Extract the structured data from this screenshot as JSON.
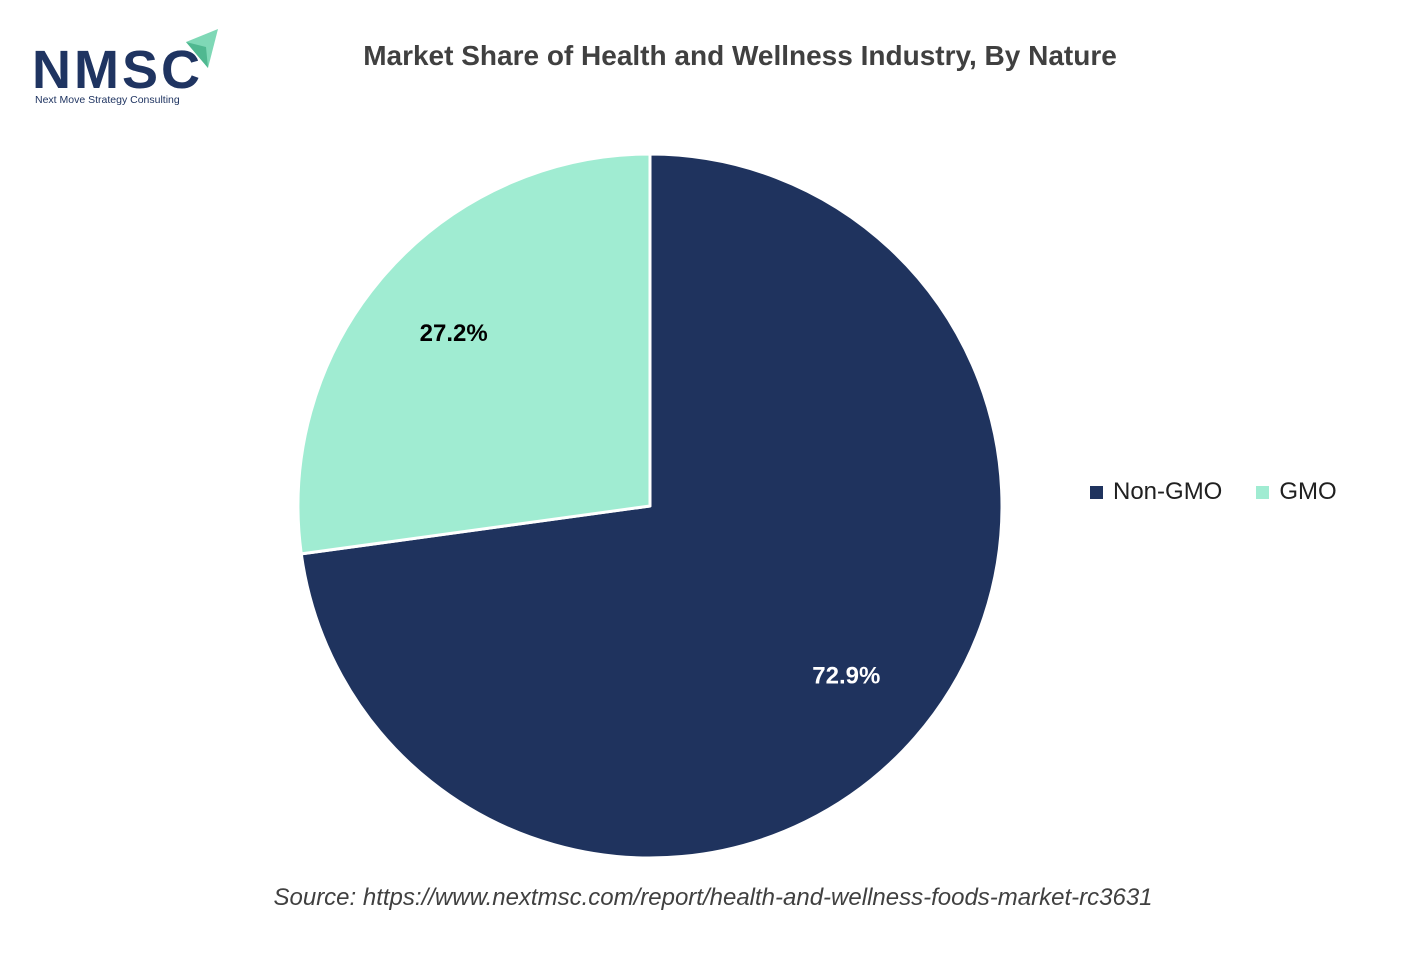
{
  "logo": {
    "text": "NMSC",
    "tagline": "Next Move Strategy Consulting",
    "icon": "paper-plane-icon",
    "colors": {
      "navy": "#1f3461",
      "mint": "#7fd8b6"
    }
  },
  "chart_data": {
    "type": "pie",
    "title": "Market Share of Health and Wellness Industry, By Nature",
    "categories": [
      "Non-GMO",
      "GMO"
    ],
    "values": [
      72.9,
      27.2
    ],
    "value_labels": [
      "72.9%",
      "27.2%"
    ],
    "colors": [
      "#1f335e",
      "#a0ecd2"
    ],
    "label_colors": [
      "#ffffff",
      "#000000"
    ],
    "start_angle_deg": 0,
    "direction": "clockwise",
    "legend_position": "right"
  },
  "source": "Source: https://www.nextmsc.com/report/health-and-wellness-foods-market-rc3631"
}
